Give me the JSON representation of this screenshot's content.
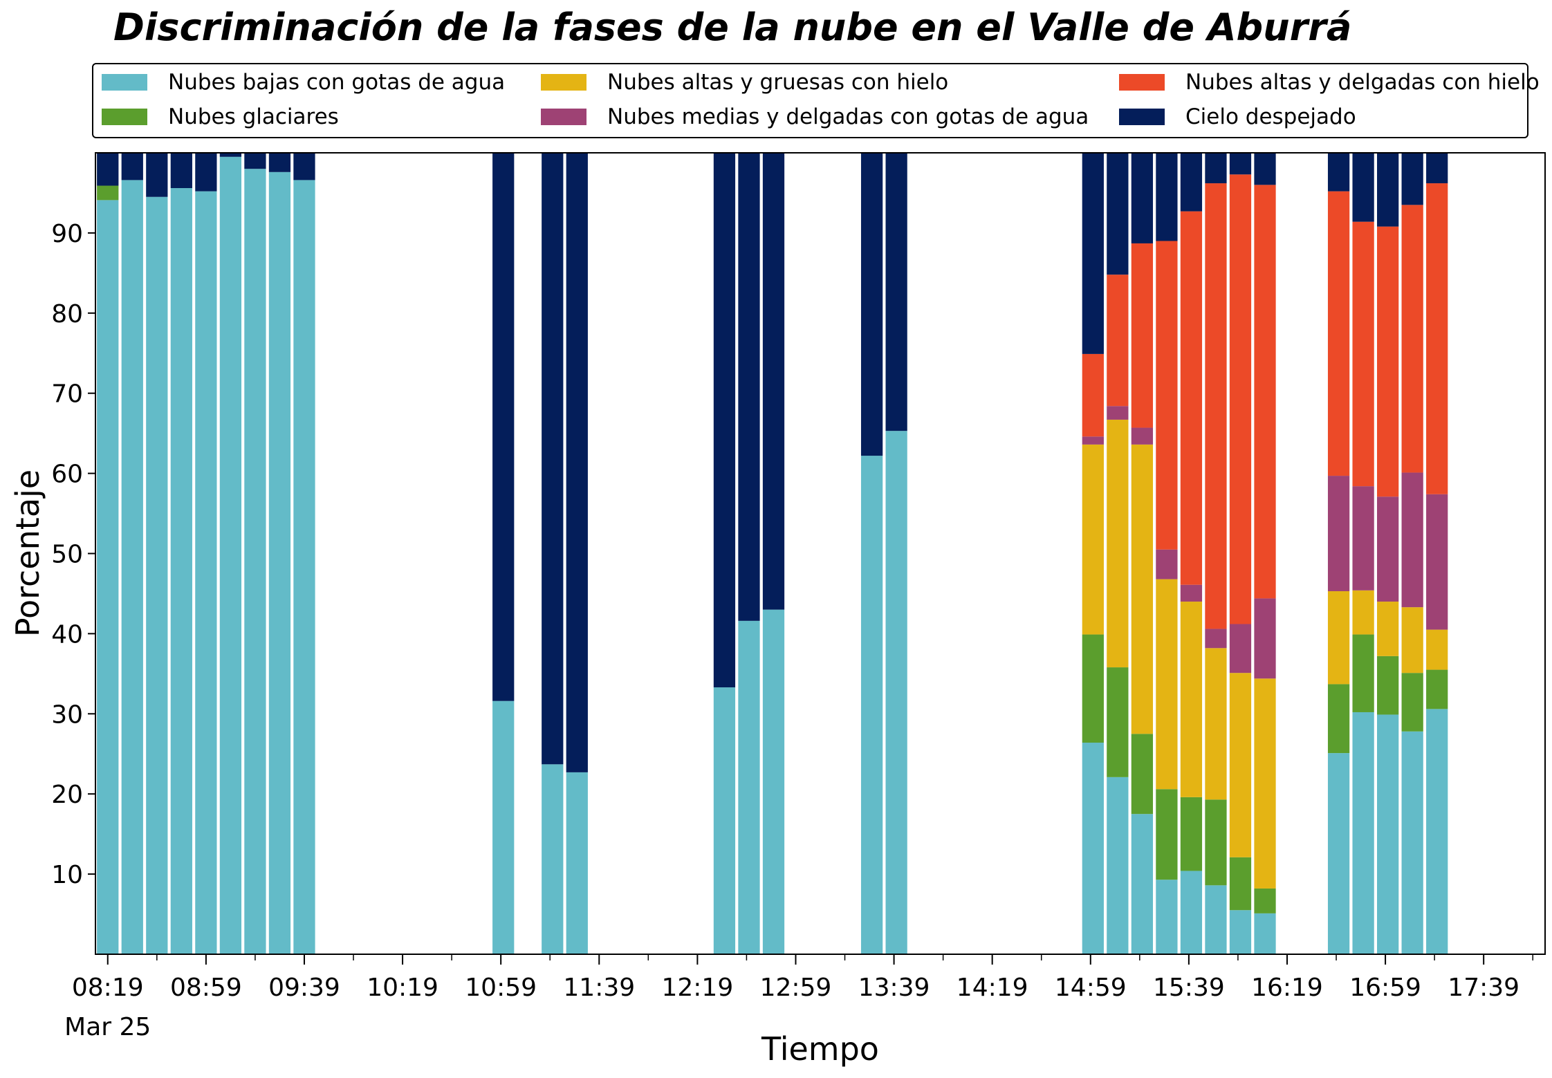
{
  "chart_data": {
    "type": "bar",
    "stacked": true,
    "title": "Discriminación de la fases de la nube en el Valle de Aburrá",
    "xlabel": "Tiempo",
    "ylabel": "Porcentaje",
    "ylim": [
      0,
      100
    ],
    "yticks": [
      10,
      20,
      30,
      40,
      50,
      60,
      70,
      80,
      90
    ],
    "xlim": [
      "08:14",
      "18:04"
    ],
    "xtick_labels": [
      "08:19",
      "08:59",
      "09:39",
      "10:19",
      "10:59",
      "11:39",
      "12:19",
      "12:59",
      "13:39",
      "14:19",
      "14:59",
      "15:39",
      "16:19",
      "16:59",
      "17:39"
    ],
    "xtick_sublabel": "Mar 25",
    "minor_tick_interval_minutes": 20,
    "bar_interval_minutes": 10,
    "grid": false,
    "legend_position": "top",
    "legend_columns": 3,
    "x": [
      "08:19",
      "08:29",
      "08:39",
      "08:49",
      "08:59",
      "09:09",
      "09:19",
      "09:29",
      "09:39",
      "11:00",
      "11:20",
      "11:30",
      "12:30",
      "12:40",
      "12:50",
      "13:30",
      "13:40",
      "15:00",
      "15:10",
      "15:20",
      "15:30",
      "15:40",
      "15:50",
      "16:00",
      "16:10",
      "16:20",
      "16:40",
      "16:50",
      "17:00",
      "17:10",
      "17:20"
    ],
    "series": [
      {
        "name": "Nubes bajas con gotas de agua",
        "color": "#63bbc8",
        "values": [
          94.1,
          96.6,
          94.5,
          95.6,
          95.2,
          99.5,
          98.0,
          97.6,
          96.6,
          31.6,
          23.7,
          22.7,
          33.3,
          41.6,
          43.0,
          62.2,
          65.3,
          26.4,
          22.1,
          17.5,
          9.3,
          10.4,
          8.6,
          5.5,
          5.1,
          0,
          25.1,
          30.2,
          29.9,
          27.8,
          30.6
        ]
      },
      {
        "name": "Nubes glaciares",
        "color": "#5b9e2d",
        "values": [
          1.8,
          0,
          0,
          0,
          0,
          0,
          0,
          0,
          0,
          0,
          0,
          0,
          0,
          0,
          0,
          0,
          0,
          13.5,
          13.7,
          10.0,
          11.3,
          9.2,
          10.7,
          6.6,
          3.1,
          0,
          8.6,
          9.7,
          7.3,
          7.3,
          4.9
        ]
      },
      {
        "name": "Nubes altas y gruesas con hielo",
        "color": "#e4b414",
        "values": [
          0,
          0,
          0,
          0,
          0,
          0,
          0,
          0,
          0,
          0,
          0,
          0,
          0,
          0,
          0,
          0,
          0,
          23.7,
          30.9,
          36.1,
          26.2,
          24.4,
          18.9,
          23.0,
          26.2,
          0,
          11.6,
          5.5,
          6.8,
          8.2,
          5.0
        ]
      },
      {
        "name": "Nubes medias y delgadas con gotas de agua",
        "color": "#9e4274",
        "values": [
          0,
          0,
          0,
          0,
          0,
          0,
          0,
          0,
          0,
          0,
          0,
          0,
          0,
          0,
          0,
          0,
          0,
          1.0,
          1.7,
          2.1,
          3.7,
          2.1,
          2.4,
          6.1,
          10.0,
          0,
          14.4,
          13.0,
          13.1,
          16.8,
          16.9
        ]
      },
      {
        "name": "Nubes altas y delgadas con hielo",
        "color": "#ec4a28",
        "values": [
          0,
          0,
          0,
          0,
          0,
          0,
          0,
          0,
          0,
          0,
          0,
          0,
          0,
          0,
          0,
          0,
          0,
          10.3,
          16.4,
          23.0,
          38.5,
          46.6,
          55.6,
          56.1,
          51.6,
          0,
          35.5,
          33.0,
          33.7,
          33.4,
          38.8
        ]
      },
      {
        "name": "Cielo despejado",
        "color": "#041e5a",
        "values": [
          4.1,
          3.4,
          5.5,
          4.4,
          4.8,
          0.5,
          2.0,
          2.4,
          3.4,
          68.4,
          76.3,
          77.3,
          66.7,
          58.4,
          57.0,
          37.8,
          34.7,
          25.1,
          15.2,
          11.3,
          11.0,
          7.3,
          3.8,
          2.7,
          4.0,
          0,
          4.8,
          8.6,
          9.2,
          6.5,
          3.8
        ]
      }
    ]
  }
}
